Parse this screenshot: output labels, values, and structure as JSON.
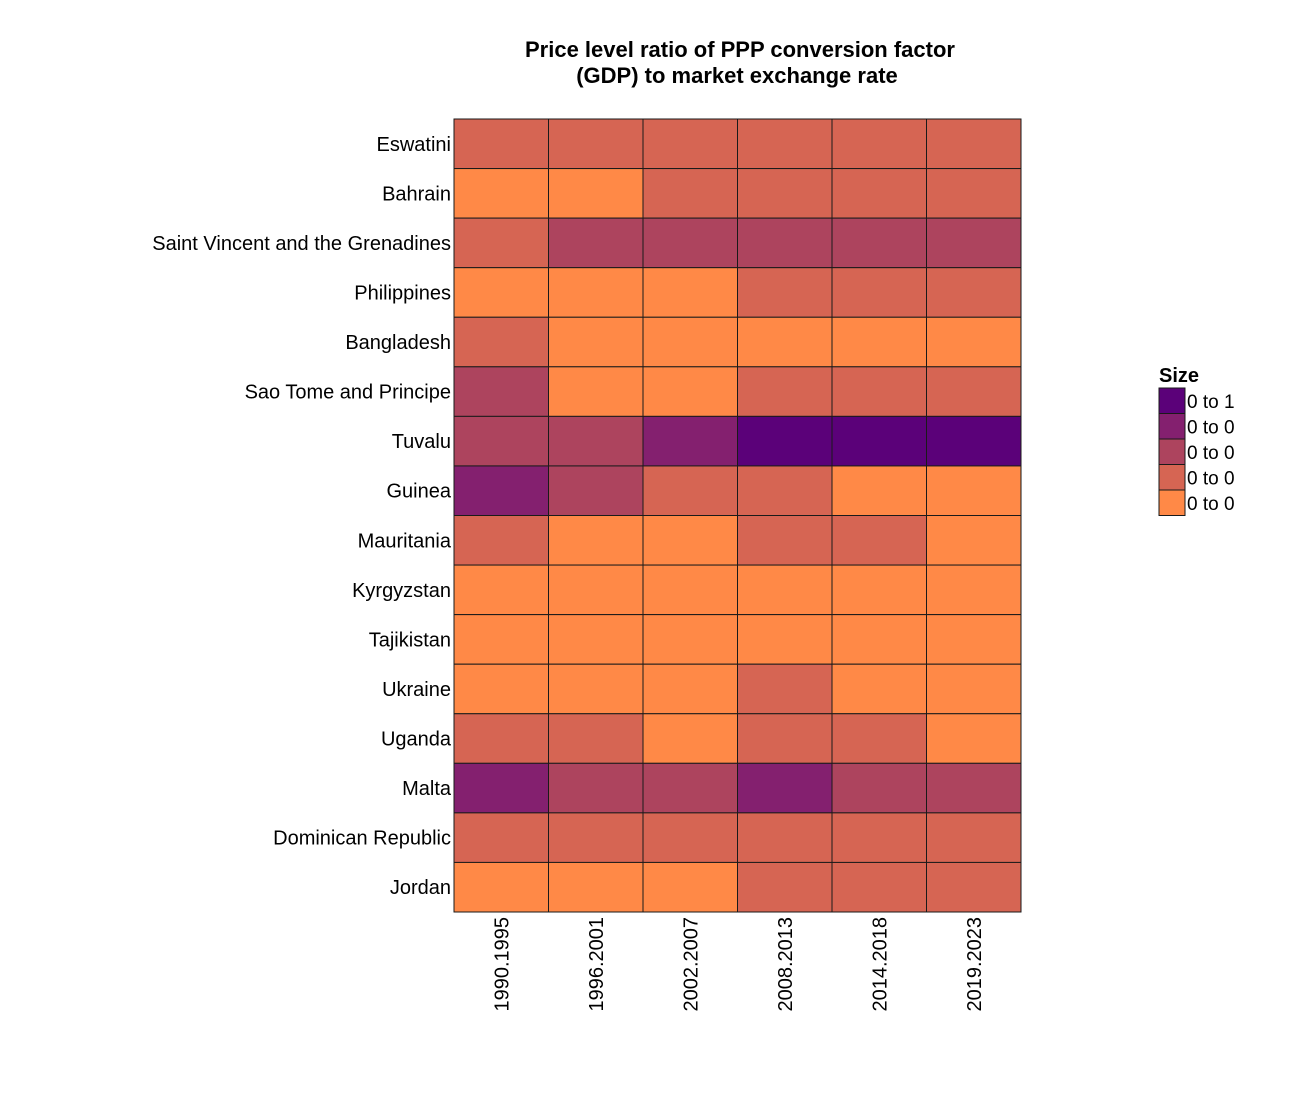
{
  "chart_data": {
    "type": "heatmap",
    "title_lines": [
      "Price level ratio of PPP conversion factor",
      "(GDP) to market exchange rate"
    ],
    "columns": [
      "1990.1995",
      "1996.2001",
      "2002.2007",
      "2008.2013",
      "2014.2018",
      "2019.2023"
    ],
    "rows": [
      "Eswatini",
      "Bahrain",
      "Saint Vincent and the Grenadines",
      "Philippines",
      "Bangladesh",
      "Sao Tome and Principe",
      "Tuvalu",
      "Guinea",
      "Mauritania",
      "Kyrgyzstan",
      "Tajikistan",
      "Ukraine",
      "Uganda",
      "Malta",
      "Dominican Republic",
      "Jordan"
    ],
    "values": [
      [
        2,
        2,
        2,
        2,
        2,
        2
      ],
      [
        1,
        1,
        2,
        2,
        2,
        2
      ],
      [
        2,
        3,
        3,
        3,
        3,
        3
      ],
      [
        1,
        1,
        1,
        2,
        2,
        2
      ],
      [
        2,
        1,
        1,
        1,
        1,
        1
      ],
      [
        3,
        1,
        1,
        2,
        2,
        2
      ],
      [
        3,
        3,
        4,
        5,
        5,
        5
      ],
      [
        4,
        3,
        2,
        2,
        1,
        1
      ],
      [
        2,
        1,
        1,
        2,
        2,
        1
      ],
      [
        1,
        1,
        1,
        1,
        1,
        1
      ],
      [
        1,
        1,
        1,
        1,
        1,
        1
      ],
      [
        1,
        1,
        1,
        2,
        1,
        1
      ],
      [
        2,
        2,
        1,
        2,
        2,
        1
      ],
      [
        4,
        3,
        3,
        4,
        3,
        3
      ],
      [
        2,
        2,
        2,
        2,
        2,
        2
      ],
      [
        1,
        1,
        1,
        2,
        2,
        2
      ]
    ],
    "legend": {
      "title": "Size",
      "items": [
        {
          "label": "0 to 1",
          "level": 5,
          "color": "#5b0179"
        },
        {
          "label": "0 to 0",
          "level": 4,
          "color": "#84206f"
        },
        {
          "label": "0 to 0",
          "level": 3,
          "color": "#ad445e"
        },
        {
          "label": "0 to 0",
          "level": 2,
          "color": "#d66553"
        },
        {
          "label": "0 to 0",
          "level": 1,
          "color": "#ff8947"
        }
      ]
    },
    "colors": {
      "1": "#ff8947",
      "2": "#d66553",
      "3": "#ad445e",
      "4": "#84206f",
      "5": "#5b0179"
    },
    "grid": false
  }
}
